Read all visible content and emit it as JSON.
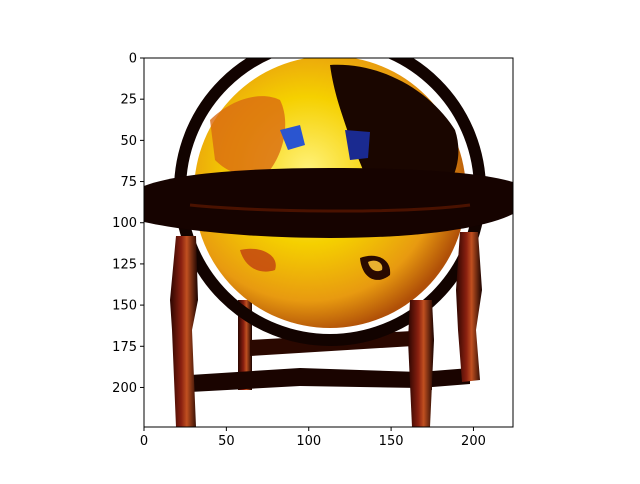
{
  "figure": {
    "kind": "matplotlib imshow of an RGB image",
    "subject": "antique desk globe on a wooden stand (oversaturated colors)",
    "x_axis": {
      "range": [
        0,
        224
      ],
      "ticks": [
        "0",
        "50",
        "100",
        "150",
        "200"
      ]
    },
    "y_axis": {
      "range": [
        0,
        224
      ],
      "inverted": true,
      "ticks": [
        "0",
        "25",
        "50",
        "75",
        "100",
        "125",
        "150",
        "175",
        "200"
      ]
    },
    "colors": {
      "frame": "#000000",
      "background": "#ffffff",
      "globe_yellow": "#f5d000",
      "globe_orange": "#e07a12",
      "stand_dark": "#1a0800",
      "wood_red": "#7a1a08",
      "ocean_blue": "#2a55d0"
    }
  }
}
